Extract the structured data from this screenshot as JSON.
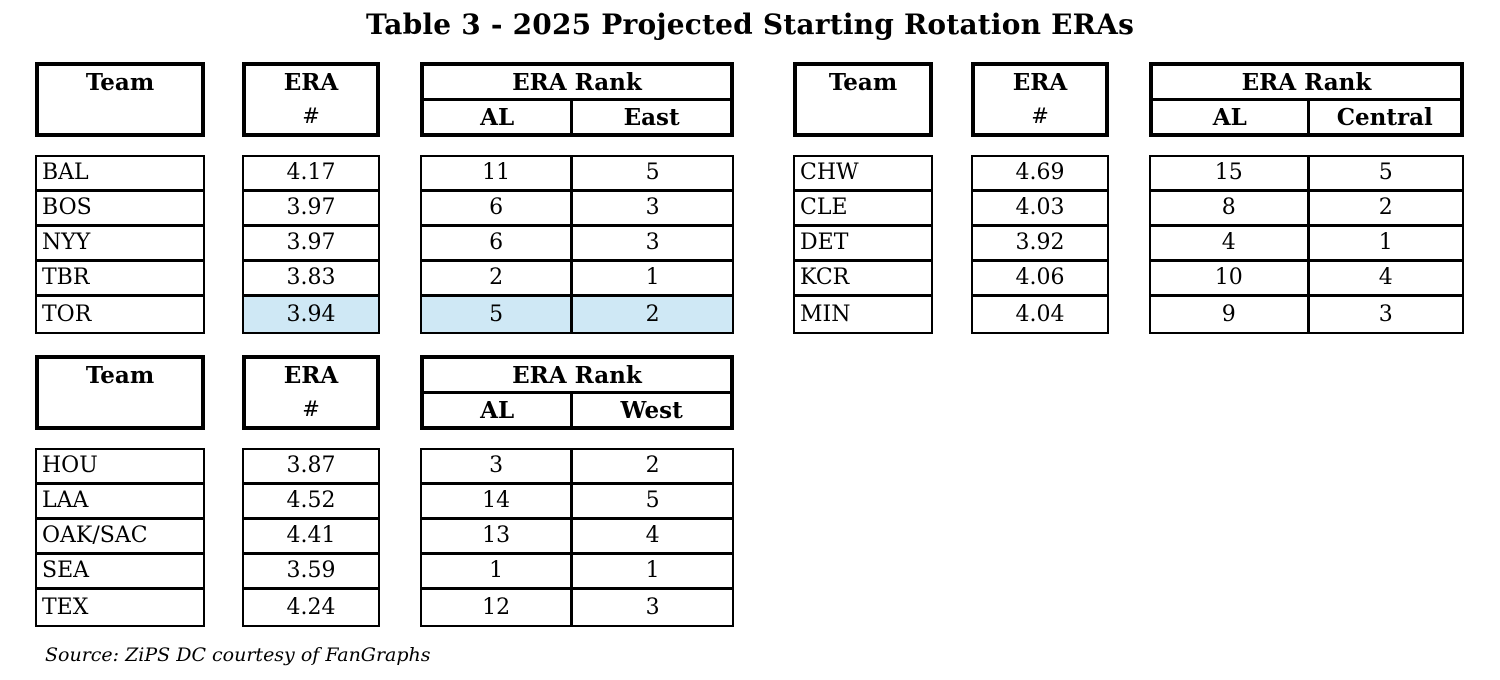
{
  "title": "Table 3 - 2025 Projected Starting Rotation ERAs",
  "source_note": "Source: ZiPS DC courtesy of FanGraphs",
  "colors": {
    "highlight": "#cfe8f5",
    "border": "#000000",
    "text": "#000000",
    "background": "#ffffff"
  },
  "headers": {
    "team": "Team",
    "era": "ERA",
    "era_num": "#",
    "era_rank": "ERA Rank",
    "al": "AL"
  },
  "groups": [
    {
      "league": "AL",
      "division": "East",
      "rows": [
        {
          "team": "BAL",
          "era": "4.17",
          "al_rank": "11",
          "div_rank": "5"
        },
        {
          "team": "BOS",
          "era": "3.97",
          "al_rank": "6",
          "div_rank": "3"
        },
        {
          "team": "NYY",
          "era": "3.97",
          "al_rank": "6",
          "div_rank": "3"
        },
        {
          "team": "TBR",
          "era": "3.83",
          "al_rank": "2",
          "div_rank": "1"
        },
        {
          "team": "TOR",
          "era": "3.94",
          "al_rank": "5",
          "div_rank": "2",
          "highlight": true
        }
      ]
    },
    {
      "league": "AL",
      "division": "Central",
      "rows": [
        {
          "team": "CHW",
          "era": "4.69",
          "al_rank": "15",
          "div_rank": "5"
        },
        {
          "team": "CLE",
          "era": "4.03",
          "al_rank": "8",
          "div_rank": "2"
        },
        {
          "team": "DET",
          "era": "3.92",
          "al_rank": "4",
          "div_rank": "1"
        },
        {
          "team": "KCR",
          "era": "4.06",
          "al_rank": "10",
          "div_rank": "4"
        },
        {
          "team": "MIN",
          "era": "4.04",
          "al_rank": "9",
          "div_rank": "3"
        }
      ]
    },
    {
      "league": "AL",
      "division": "West",
      "rows": [
        {
          "team": "HOU",
          "era": "3.87",
          "al_rank": "3",
          "div_rank": "2"
        },
        {
          "team": "LAA",
          "era": "4.52",
          "al_rank": "14",
          "div_rank": "5"
        },
        {
          "team": "OAK/SAC",
          "era": "4.41",
          "al_rank": "13",
          "div_rank": "4"
        },
        {
          "team": "SEA",
          "era": "3.59",
          "al_rank": "1",
          "div_rank": "1"
        },
        {
          "team": "TEX",
          "era": "4.24",
          "al_rank": "12",
          "div_rank": "3"
        }
      ]
    }
  ]
}
